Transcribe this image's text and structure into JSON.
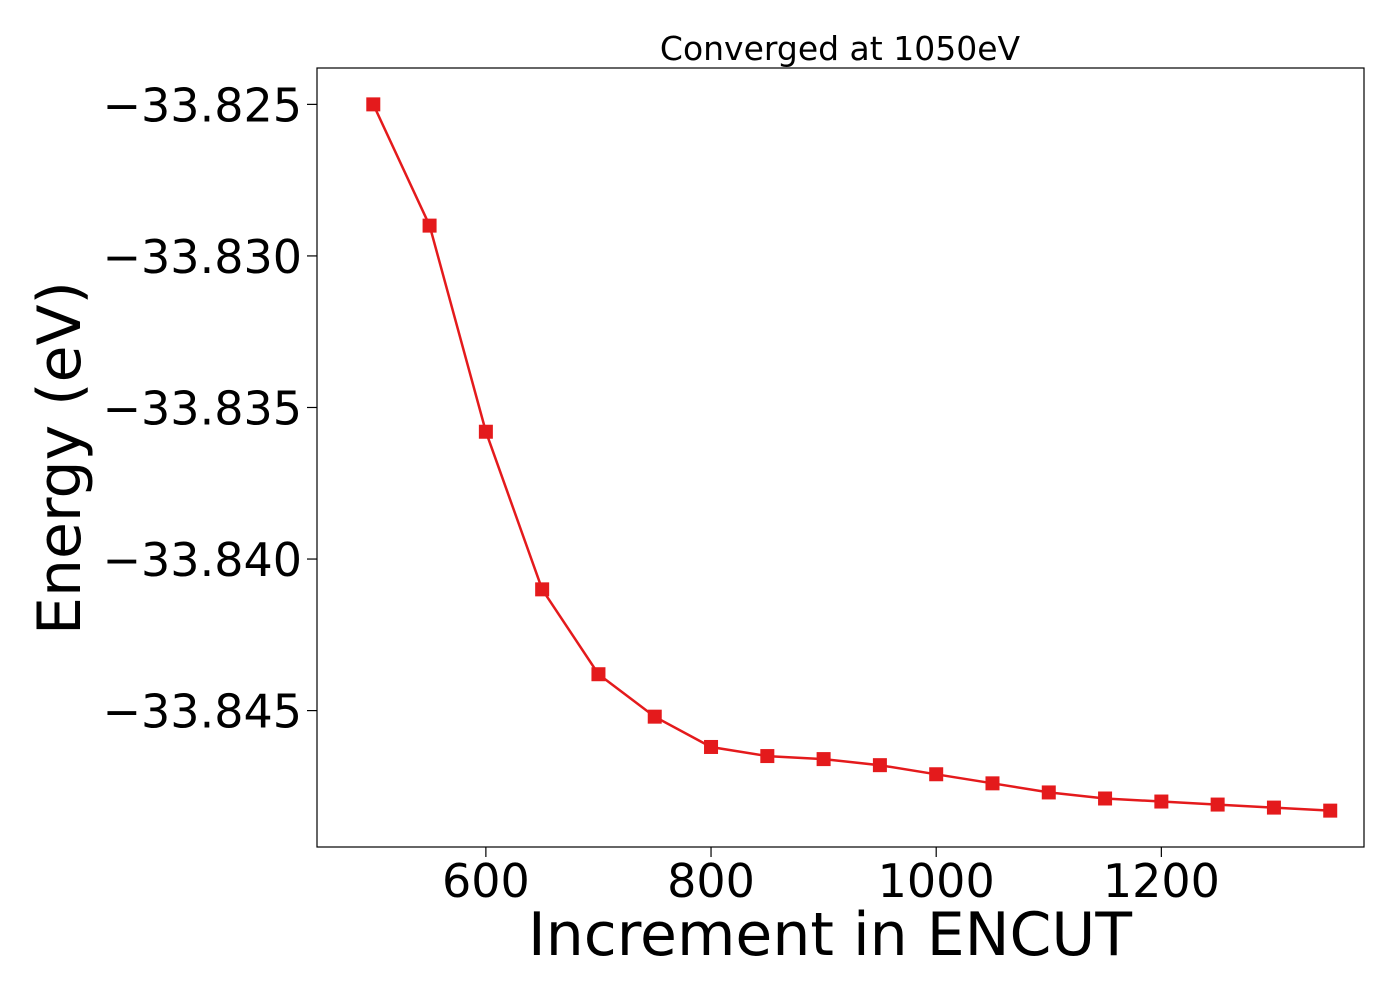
{
  "chart_data": {
    "type": "line",
    "title": "Converged at 1050eV",
    "xlabel": "Increment in ENCUT",
    "ylabel": "Energy (eV)",
    "xlim": [
      450,
      1380
    ],
    "ylim": [
      -33.8495,
      -33.8238
    ],
    "x_ticks": [
      600,
      800,
      1000,
      1200
    ],
    "x_tick_labels": [
      "600",
      "800",
      "1000",
      "1200"
    ],
    "y_ticks": [
      -33.825,
      -33.83,
      -33.835,
      -33.84,
      -33.845
    ],
    "y_tick_labels": [
      "−33.825",
      "−33.830",
      "−33.835",
      "−33.840",
      "−33.845"
    ],
    "grid": false,
    "series": [
      {
        "color": "#e41a1c",
        "marker": "square",
        "x": [
          500,
          550,
          600,
          650,
          700,
          750,
          800,
          850,
          900,
          950,
          1000,
          1050,
          1100,
          1150,
          1200,
          1250,
          1300,
          1350
        ],
        "y": [
          -33.825,
          -33.829,
          -33.8358,
          -33.841,
          -33.8438,
          -33.8452,
          -33.8462,
          -33.8465,
          -33.8466,
          -33.8468,
          -33.8471,
          -33.8474,
          -33.8477,
          -33.8479,
          -33.848,
          -33.8481,
          -33.8482,
          -33.8483
        ]
      }
    ]
  }
}
